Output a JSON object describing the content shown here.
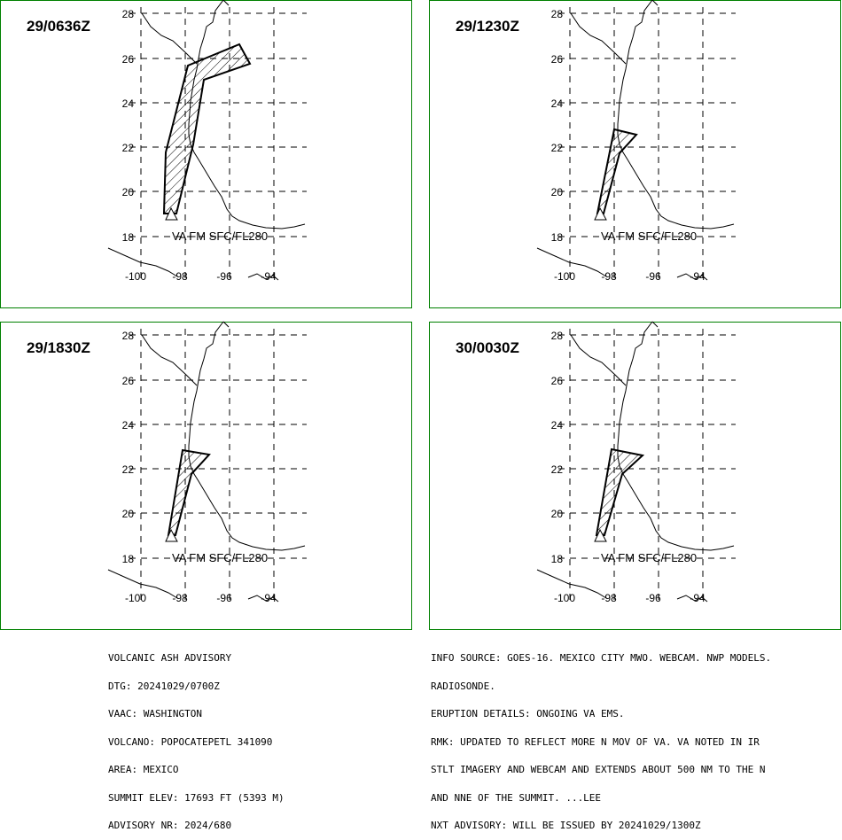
{
  "panels": [
    {
      "time": "29/0636Z",
      "layer": "VA FM SFC/FL280"
    },
    {
      "time": "29/1230Z",
      "layer": "VA FM SFC/FL280"
    },
    {
      "time": "29/1830Z",
      "layer": "VA FM SFC/FL280"
    },
    {
      "time": "30/0030Z",
      "layer": "VA FM SFC/FL280"
    }
  ],
  "lat_ticks": [
    "28",
    "26",
    "24",
    "22",
    "20",
    "18"
  ],
  "lon_ticks": [
    "-100",
    "-98",
    "-96",
    "-94"
  ],
  "advisory_left": [
    "VOLCANIC ASH ADVISORY",
    "DTG: 20241029/0700Z",
    "VAAC: WASHINGTON",
    "VOLCANO: POPOCATEPETL 341090",
    "AREA: MEXICO",
    "SUMMIT ELEV: 17693 FT (5393 M)",
    "ADVISORY NR: 2024/680"
  ],
  "advisory_right": [
    "INFO SOURCE: GOES-16. MEXICO CITY MWO. WEBCAM. NWP MODELS.",
    "RADIOSONDE.",
    "ERUPTION DETAILS: ONGOING VA EMS.",
    "RMK: UPDATED TO REFLECT MORE N MOV OF VA. VA NOTED IN IR",
    "STLT IMAGERY AND WEBCAM AND EXTENDS ABOUT 500 NM TO THE N",
    "AND NNE OF THE SUMMIT. ...LEE",
    "NXT ADVISORY: WILL BE ISSUED BY 20241029/1300Z"
  ],
  "colors": {
    "frame": "#008000",
    "ink": "#000000"
  }
}
